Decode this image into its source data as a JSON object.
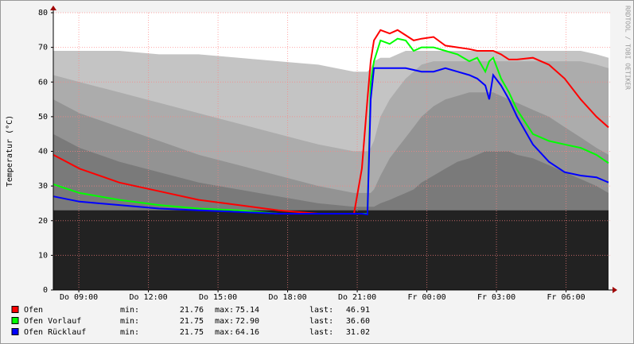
{
  "chart_data": {
    "type": "line",
    "y_label": "Temperatur (°C)",
    "watermark": "RRDTOOL / TOBI OETIKER",
    "xlim": [
      7.9,
      31.9
    ],
    "xticks": [
      {
        "value": 9,
        "label": "Do 09:00"
      },
      {
        "value": 12,
        "label": "Do 12:00"
      },
      {
        "value": 15,
        "label": "Do 15:00"
      },
      {
        "value": 18,
        "label": "Do 18:00"
      },
      {
        "value": 21,
        "label": "Do 21:00"
      },
      {
        "value": 24,
        "label": "Fr 00:00"
      },
      {
        "value": 27,
        "label": "Fr 03:00"
      },
      {
        "value": 30,
        "label": "Fr 06:00"
      }
    ],
    "ylim": [
      0,
      80
    ],
    "yticks": [
      0,
      10,
      20,
      30,
      40,
      50,
      60,
      70,
      80
    ],
    "grid": true,
    "x": [
      7.9,
      9.03,
      10.75,
      12.46,
      14.17,
      15.89,
      17.6,
      19.32,
      20.86,
      21.2,
      21.44,
      21.58,
      21.72,
      22.0,
      22.4,
      22.74,
      23.09,
      23.43,
      23.77,
      24.29,
      24.8,
      25.32,
      25.83,
      26.17,
      26.52,
      26.69,
      26.86,
      27.2,
      27.54,
      27.89,
      28.57,
      29.26,
      29.94,
      30.63,
      31.31,
      31.83
    ],
    "background_areas": [
      {
        "color": "#c4c4c4",
        "values": [
          69,
          69,
          69,
          68,
          68,
          67,
          66,
          65,
          63,
          63,
          63,
          64,
          66,
          67,
          67,
          68,
          69,
          69,
          69,
          69,
          69,
          69,
          69,
          69,
          69,
          69,
          69,
          69,
          69,
          69,
          69,
          69,
          69,
          69,
          68,
          67
        ]
      },
      {
        "color": "#acacac",
        "values": [
          62,
          60,
          57,
          54,
          51,
          48,
          45,
          42,
          40,
          40,
          40,
          41,
          43,
          50,
          55,
          58,
          61,
          63,
          65,
          66,
          66,
          66,
          66,
          66,
          66,
          66,
          66,
          66,
          66,
          66,
          66,
          66,
          66,
          66,
          65,
          64
        ]
      },
      {
        "color": "#939393",
        "values": [
          55,
          51,
          47,
          43,
          39,
          36,
          33,
          30,
          28,
          28,
          28,
          28,
          29,
          33,
          38,
          41,
          44,
          47,
          50,
          53,
          55,
          56,
          57,
          57,
          57,
          57,
          57,
          56,
          55,
          54,
          52,
          50,
          47,
          44,
          41,
          39
        ]
      },
      {
        "color": "#7a7a7a",
        "values": [
          45,
          41,
          37,
          34,
          31,
          29,
          27,
          25,
          24,
          24,
          24,
          24,
          24,
          25,
          26,
          27,
          28,
          29,
          31,
          33,
          35,
          37,
          38,
          39,
          40,
          40,
          40,
          40,
          40,
          39,
          38,
          36,
          34,
          32,
          30,
          28
        ]
      },
      {
        "color": "#222222",
        "values": [
          23,
          23,
          23,
          23,
          23,
          23,
          23,
          23,
          23,
          23,
          23,
          23,
          23,
          23,
          23,
          23,
          23,
          23,
          23,
          23,
          23,
          23,
          23,
          23,
          23,
          23,
          23,
          23,
          23,
          23,
          23,
          23,
          23,
          23,
          23,
          23
        ]
      }
    ],
    "stat_labels": [
      "min:",
      "max:",
      "last:"
    ],
    "series": [
      {
        "name": "Ofen",
        "color": "#ff0000",
        "min": 21.76,
        "max": 75.14,
        "last": 46.91,
        "values": [
          39,
          35,
          31,
          28.5,
          26,
          24.5,
          23,
          22,
          22,
          35,
          55,
          66,
          72,
          75,
          74,
          75,
          73.5,
          72,
          72.5,
          73,
          70.5,
          70,
          69.5,
          69,
          69,
          69,
          69,
          68,
          66.5,
          66.5,
          67,
          65,
          61,
          55,
          50,
          46.91
        ]
      },
      {
        "name": "Ofen Vorlauf",
        "color": "#00ff00",
        "min": 21.75,
        "max": {
          "value": 72.9,
          "label": "72.90"
        },
        "last": {
          "value": 36.6,
          "label": "36.60"
        },
        "values": [
          30.5,
          28,
          26,
          24.5,
          23.5,
          23,
          22,
          22,
          22,
          22,
          22,
          60,
          66,
          72,
          71,
          72.5,
          72,
          69,
          70,
          70,
          69,
          68,
          66,
          67,
          63,
          66,
          67,
          61,
          57,
          52,
          45,
          43,
          42,
          41,
          39,
          36.6
        ]
      },
      {
        "name": "Ofen Rücklauf",
        "color": "#0000ff",
        "min": 21.75,
        "max": 64.16,
        "last": 31.02,
        "values": [
          27,
          25.5,
          24.5,
          23.5,
          23,
          22.5,
          22,
          22,
          22,
          22,
          21.8,
          55,
          64,
          64,
          64,
          64,
          64,
          63.5,
          63,
          63,
          64,
          63,
          62,
          61,
          59,
          55,
          62,
          59,
          55,
          50,
          42,
          37,
          34,
          33,
          32.5,
          31.02
        ]
      }
    ]
  }
}
